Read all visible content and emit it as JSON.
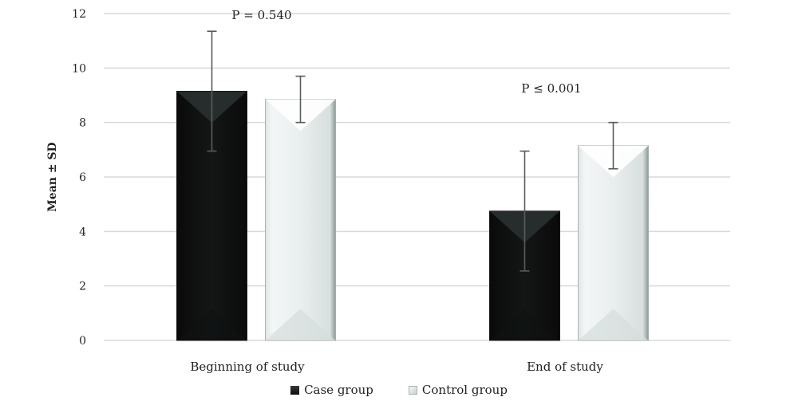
{
  "chart_data": {
    "type": "bar",
    "title": "",
    "xlabel": "",
    "ylabel": "Mean ± SD",
    "ylim": [
      0,
      12
    ],
    "yticks": [
      "0",
      "2",
      "4",
      "6",
      "8",
      "10",
      "12"
    ],
    "grid": true,
    "legend_position": "bottom",
    "categories": [
      "Beginning of study",
      "End of study"
    ],
    "series": [
      {
        "name": "Case group",
        "color": "#0b0b0b",
        "values": [
          9.15,
          4.75
        ],
        "sd_upper": [
          11.35,
          6.95
        ],
        "sd_lower": [
          6.95,
          2.55
        ]
      },
      {
        "name": "Control group",
        "color": "#e8eded",
        "values": [
          8.85,
          7.15
        ],
        "sd_upper": [
          9.7,
          8.0
        ],
        "sd_lower": [
          8.0,
          6.3
        ]
      }
    ],
    "annotations": [
      "P = 0.540",
      "P ≤ 0.001"
    ]
  }
}
